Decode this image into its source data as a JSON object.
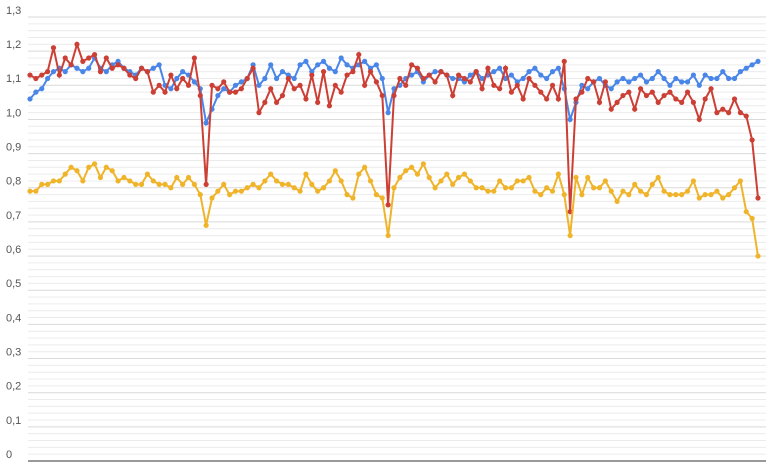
{
  "chart_data": {
    "type": "line",
    "ylim": [
      0,
      1.3
    ],
    "yticks": [
      0,
      {
        "value": 0.1,
        "label": "0,1"
      },
      {
        "value": 0.2,
        "label": "0,2"
      },
      {
        "value": 0.3,
        "label": "0,3"
      },
      {
        "value": 0.4,
        "label": "0,4"
      },
      {
        "value": 0.5,
        "label": "0,5"
      },
      {
        "value": 0.6,
        "label": "0,6"
      },
      {
        "value": 0.7,
        "label": "0,7"
      },
      {
        "value": 0.8,
        "label": "0,8"
      },
      {
        "value": 0.9,
        "label": "0,9"
      },
      {
        "value": 1.0,
        "label": "1,0"
      },
      {
        "value": 1.1,
        "label": "1,1"
      },
      {
        "value": 1.2,
        "label": "1,2"
      },
      {
        "value": 1.3,
        "label": "1,3"
      }
    ],
    "grid": true,
    "minor_grid_divisions": 5,
    "series": [
      {
        "color": "#4a86e8",
        "values": [
          1.06,
          1.08,
          1.09,
          1.12,
          1.14,
          1.15,
          1.14,
          1.16,
          1.15,
          1.14,
          1.15,
          1.18,
          1.15,
          1.14,
          1.16,
          1.17,
          1.15,
          1.14,
          1.13,
          1.15,
          1.14,
          1.15,
          1.16,
          1.1,
          1.09,
          1.12,
          1.14,
          1.13,
          1.11,
          1.09,
          0.99,
          1.03,
          1.07,
          1.09,
          1.08,
          1.1,
          1.11,
          1.12,
          1.16,
          1.1,
          1.12,
          1.16,
          1.12,
          1.14,
          1.13,
          1.12,
          1.16,
          1.17,
          1.14,
          1.16,
          1.17,
          1.15,
          1.14,
          1.18,
          1.16,
          1.15,
          1.16,
          1.17,
          1.15,
          1.16,
          1.12,
          1.02,
          1.09,
          1.1,
          1.12,
          1.13,
          1.14,
          1.11,
          1.13,
          1.14,
          1.14,
          1.13,
          1.12,
          1.12,
          1.11,
          1.13,
          1.14,
          1.12,
          1.13,
          1.14,
          1.15,
          1.12,
          1.13,
          1.11,
          1.12,
          1.14,
          1.15,
          1.13,
          1.12,
          1.14,
          1.15,
          1.09,
          1.0,
          1.05,
          1.1,
          1.09,
          1.11,
          1.12,
          1.1,
          1.09,
          1.11,
          1.12,
          1.11,
          1.12,
          1.13,
          1.11,
          1.12,
          1.14,
          1.12,
          1.1,
          1.12,
          1.11,
          1.11,
          1.13,
          1.1,
          1.13,
          1.12,
          1.12,
          1.14,
          1.12,
          1.12,
          1.14,
          1.15,
          1.16,
          1.17
        ]
      },
      {
        "color": "#cc3f35",
        "values": [
          1.13,
          1.12,
          1.13,
          1.14,
          1.21,
          1.13,
          1.18,
          1.16,
          1.22,
          1.17,
          1.18,
          1.19,
          1.14,
          1.18,
          1.15,
          1.16,
          1.15,
          1.13,
          1.12,
          1.15,
          1.14,
          1.08,
          1.1,
          1.08,
          1.13,
          1.09,
          1.12,
          1.1,
          1.18,
          1.07,
          0.81,
          1.1,
          1.09,
          1.11,
          1.08,
          1.08,
          1.09,
          1.12,
          1.15,
          1.02,
          1.05,
          1.09,
          1.05,
          1.07,
          1.12,
          1.09,
          1.1,
          1.06,
          1.13,
          1.05,
          1.14,
          1.04,
          1.1,
          1.08,
          1.13,
          1.14,
          1.19,
          1.1,
          1.14,
          1.11,
          1.07,
          0.75,
          1.07,
          1.12,
          1.1,
          1.16,
          1.15,
          1.12,
          1.13,
          1.11,
          1.14,
          1.13,
          1.07,
          1.13,
          1.12,
          1.11,
          1.14,
          1.09,
          1.15,
          1.1,
          1.09,
          1.15,
          1.08,
          1.1,
          1.06,
          1.12,
          1.1,
          1.08,
          1.06,
          1.1,
          1.06,
          1.17,
          0.73,
          1.06,
          1.08,
          1.12,
          1.11,
          1.05,
          1.11,
          1.03,
          1.05,
          1.07,
          1.08,
          1.03,
          1.09,
          1.07,
          1.08,
          1.05,
          1.07,
          1.08,
          1.06,
          1.05,
          1.08,
          1.05,
          1.0,
          1.06,
          1.09,
          1.02,
          1.03,
          1.02,
          1.06,
          1.02,
          1.01,
          0.94,
          0.77
        ]
      },
      {
        "color": "#efb42a",
        "values": [
          0.79,
          0.79,
          0.81,
          0.81,
          0.82,
          0.82,
          0.84,
          0.86,
          0.85,
          0.82,
          0.86,
          0.87,
          0.83,
          0.86,
          0.85,
          0.82,
          0.83,
          0.82,
          0.81,
          0.81,
          0.84,
          0.82,
          0.81,
          0.81,
          0.8,
          0.83,
          0.81,
          0.83,
          0.81,
          0.78,
          0.69,
          0.77,
          0.79,
          0.81,
          0.78,
          0.79,
          0.79,
          0.8,
          0.81,
          0.8,
          0.82,
          0.84,
          0.82,
          0.81,
          0.81,
          0.8,
          0.79,
          0.84,
          0.81,
          0.79,
          0.8,
          0.82,
          0.85,
          0.82,
          0.78,
          0.77,
          0.84,
          0.86,
          0.82,
          0.78,
          0.77,
          0.66,
          0.8,
          0.83,
          0.85,
          0.86,
          0.84,
          0.87,
          0.83,
          0.8,
          0.82,
          0.84,
          0.81,
          0.83,
          0.84,
          0.82,
          0.8,
          0.8,
          0.79,
          0.79,
          0.82,
          0.8,
          0.8,
          0.82,
          0.82,
          0.83,
          0.79,
          0.78,
          0.8,
          0.79,
          0.84,
          0.78,
          0.66,
          0.83,
          0.78,
          0.83,
          0.8,
          0.8,
          0.82,
          0.79,
          0.76,
          0.79,
          0.78,
          0.81,
          0.79,
          0.78,
          0.81,
          0.83,
          0.79,
          0.78,
          0.78,
          0.78,
          0.79,
          0.82,
          0.77,
          0.78,
          0.78,
          0.79,
          0.77,
          0.78,
          0.8,
          0.82,
          0.73,
          0.71,
          0.6
        ]
      }
    ]
  }
}
